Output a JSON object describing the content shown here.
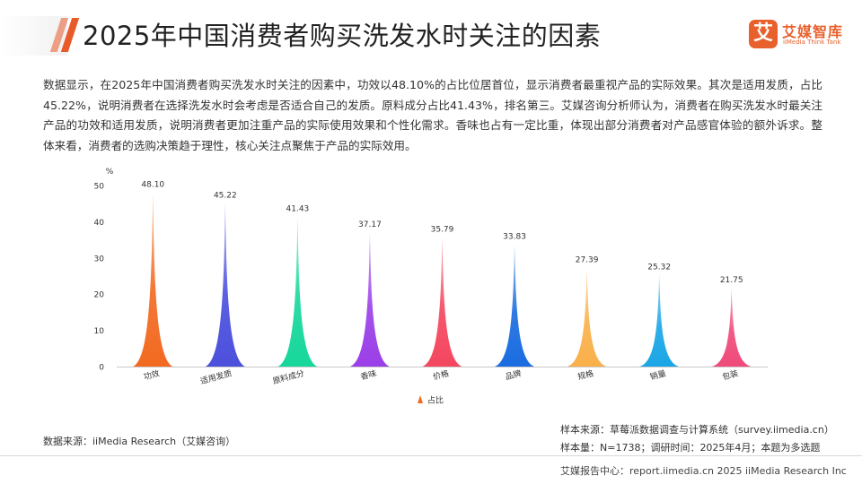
{
  "header": {
    "title": "2025年中国消费者购买洗发水时关注的因素",
    "logo_mark": "艾",
    "logo_name": "艾媒智库",
    "logo_sub": "iiMedia Think Tank"
  },
  "summary": "数据显示，在2025年中国消费者购买洗发水时关注的因素中，功效以48.10%的占比位居首位，显示消费者最重视产品的实际效果。其次是适用发质，占比45.22%，说明消费者在选择洗发水时会考虑是否适合自己的发质。原料成分占比41.43%，排名第三。艾媒咨询分析师认为，消费者在购买洗发水时最关注产品的功效和适用发质，说明消费者更加注重产品的实际使用效果和个性化需求。香味也占有一定比重，体现出部分消费者对产品感官体验的额外诉求。整体来看，消费者的选购决策趋于理性，核心关注点聚焦于产品的实际效用。",
  "chart_data": {
    "type": "bar",
    "unit_label": "%",
    "categories": [
      "功效",
      "适用发质",
      "原料成分",
      "香味",
      "价格",
      "品牌",
      "规格",
      "销量",
      "包装"
    ],
    "values": [
      48.1,
      45.22,
      41.43,
      37.17,
      35.79,
      33.83,
      27.39,
      25.32,
      21.75
    ],
    "value_labels": [
      "48.10",
      "45.22",
      "41.43",
      "37.17",
      "35.79",
      "33.83",
      "27.39",
      "25.32",
      "21.75"
    ],
    "colors": [
      "#f26a21",
      "#4b4fdc",
      "#16d79b",
      "#9a3fe8",
      "#f4465f",
      "#1a6ce0",
      "#f9b04a",
      "#1aa6e6",
      "#ef4a7a"
    ],
    "yticks": [
      0,
      10,
      20,
      30,
      40,
      50
    ],
    "ylim": [
      0,
      50
    ],
    "series": [
      {
        "name": "占比",
        "values": [
          48.1,
          45.22,
          41.43,
          37.17,
          35.79,
          33.83,
          27.39,
          25.32,
          21.75
        ]
      }
    ],
    "legend_position": "bottom-center",
    "grid": false
  },
  "footer": {
    "source": "数据来源：iiMedia Research（艾媒咨询）",
    "sample_source": "样本来源：草莓派数据调查与计算系统（survey.iimedia.cn）",
    "sample_info": "样本量：N=1738；调研时间：2025年4月；本题为多选题",
    "bottom": "艾媒报告中心：report.iimedia.cn   2025 iiMedia Research Inc"
  }
}
